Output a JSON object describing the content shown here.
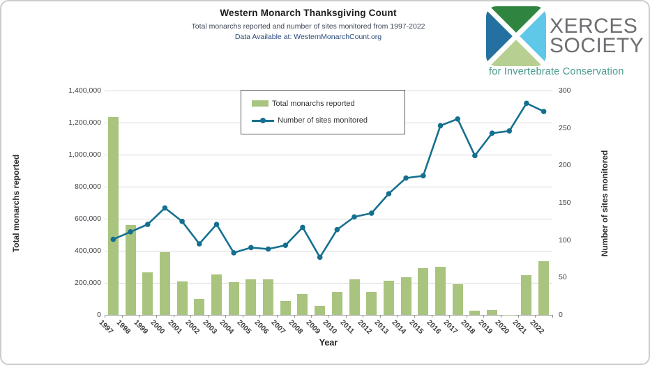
{
  "header": {
    "title": "Western Monarch Thanksgiving Count",
    "subtitle": "Total monarchs reported and number of sites monitored from 1997-2022",
    "source": "Data Available at: WesternMonarchCount.org"
  },
  "logo": {
    "name_line1": "XERCES",
    "name_line2": "SOCIETY",
    "tagline": "for Invertebrate Conservation",
    "colors": {
      "wedge_left": "#2470a0",
      "wedge_top": "#2f8540",
      "wedge_right": "#5fc8e8",
      "wedge_bottom": "#b7cf90",
      "name_text": "#6d6e71",
      "tagline_text": "#4b9a8e"
    }
  },
  "chart_data": {
    "type": "bar",
    "combo": "bar+line",
    "title": "Western Monarch Thanksgiving Count",
    "xlabel": "Year",
    "grid": true,
    "legend_position": "top-center-inside",
    "categories": [
      "1997",
      "1998",
      "1999",
      "2000",
      "2001",
      "2002",
      "2003",
      "2004",
      "2005",
      "2006",
      "2007",
      "2008",
      "2009",
      "2010",
      "2011",
      "2012",
      "2013",
      "2014",
      "2015",
      "2016",
      "2017",
      "2018",
      "2019",
      "2020",
      "2021",
      "2022"
    ],
    "series": [
      {
        "name": "Total monarchs reported",
        "type": "bar",
        "axis": "left",
        "color": "#a9c47f",
        "values": [
          1235000,
          560000,
          267000,
          390000,
          210000,
          99000,
          254000,
          205000,
          220000,
          221000,
          86000,
          132000,
          58000,
          143000,
          222000,
          145000,
          211000,
          235000,
          293000,
          298000,
          193000,
          28000,
          29000,
          2000,
          247000,
          335000
        ]
      },
      {
        "name": "Number of sites monitored",
        "type": "line",
        "axis": "right",
        "color": "#15708f",
        "values": [
          101,
          111,
          121,
          143,
          125,
          95,
          121,
          83,
          90,
          88,
          93,
          117,
          77,
          114,
          131,
          136,
          162,
          183,
          186,
          253,
          262,
          213,
          243,
          246,
          283,
          272
        ]
      }
    ],
    "left_axis": {
      "label": "Total monarchs reported",
      "min": 0,
      "max": 1400000,
      "step": 200000,
      "ticks_top_to_bottom": [
        "1,400,000",
        "1,200,000",
        "1,000,000",
        "800,000",
        "600,000",
        "400,000",
        "200,000",
        "0"
      ]
    },
    "right_axis": {
      "label": "Number of sites monitored",
      "min": 0,
      "max": 300,
      "step": 50,
      "ticks_top_to_bottom": [
        "300",
        "250",
        "200",
        "150",
        "100",
        "50",
        "0"
      ]
    },
    "grid_color": "#d7d7d7"
  }
}
